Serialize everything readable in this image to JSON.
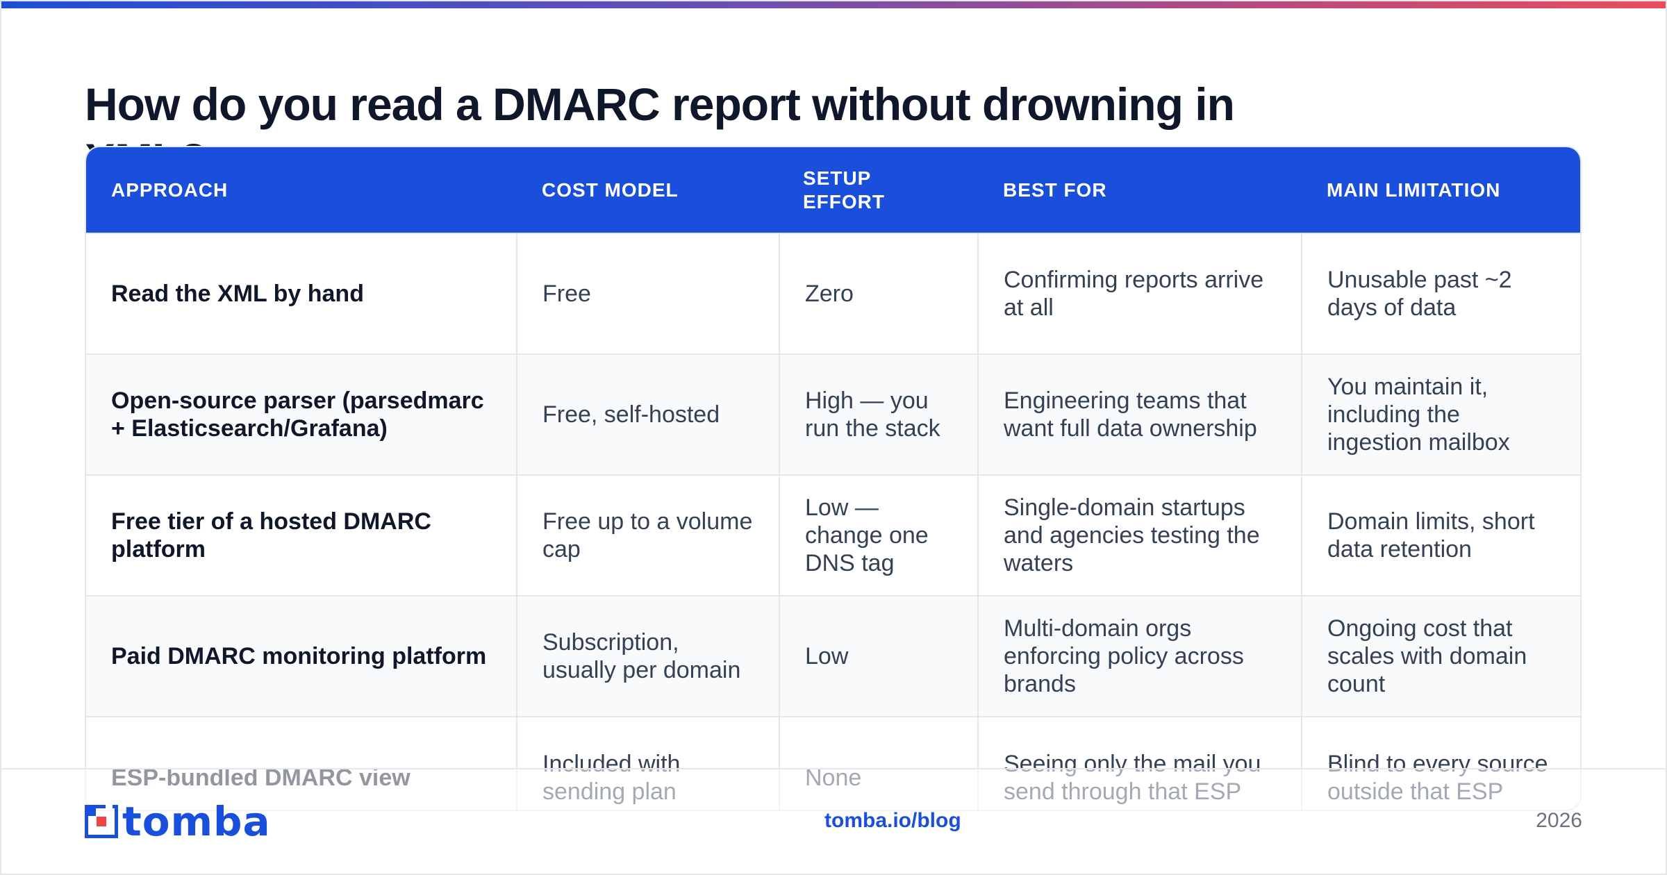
{
  "title": "How do you read a DMARC report without drowning in XML?",
  "table": {
    "headers": [
      "APPROACH",
      "COST MODEL",
      "SETUP EFFORT",
      "BEST FOR",
      "MAIN LIMITATION"
    ],
    "rows": [
      [
        "Read the XML by hand",
        "Free",
        "Zero",
        "Confirming reports arrive at all",
        "Unusable past ~2 days of data"
      ],
      [
        "Open-source parser (parsedmarc + Elasticsearch/Grafana)",
        "Free, self-hosted",
        "High — you run the stack",
        "Engineering teams that want full data ownership",
        "You maintain it, including the ingestion mailbox"
      ],
      [
        "Free tier of a hosted DMARC platform",
        "Free up to a volume cap",
        "Low — change one DNS tag",
        "Single-domain startups and agencies testing the waters",
        "Domain limits, short data retention"
      ],
      [
        "Paid DMARC monitoring platform",
        "Subscription, usually per domain",
        "Low",
        "Multi-domain orgs enforcing policy across brands",
        "Ongoing cost that scales with domain count"
      ],
      [
        "ESP-bundled DMARC view",
        "Included with sending plan",
        "None",
        "Seeing only the mail you send through that ESP",
        "Blind to every source outside that ESP"
      ]
    ]
  },
  "footer": {
    "logo_text": "tomba",
    "url": "tomba.io/blog",
    "year": "2026"
  },
  "colors": {
    "accent": "#1a4fdb",
    "header_bg": "#1a4fdb",
    "title": "#0f172a",
    "body_text": "#334155",
    "muted": "#6b7280"
  },
  "icons": {
    "logo": "tomba-logo-icon"
  }
}
